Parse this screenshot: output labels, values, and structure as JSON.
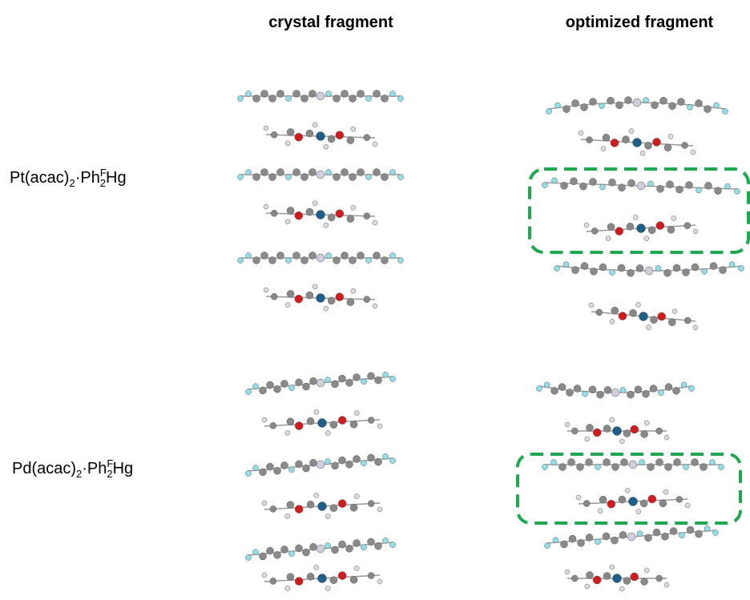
{
  "columns": [
    "crystal fragment",
    "optimized fragment"
  ],
  "rows": [
    {
      "label": [
        "Pt(acac)",
        "2",
        "·Ph",
        "F",
        "2",
        "Hg"
      ]
    },
    {
      "label": [
        "Pd(acac)",
        "2",
        "·Ph",
        "F",
        "2",
        "Hg"
      ]
    }
  ]
}
